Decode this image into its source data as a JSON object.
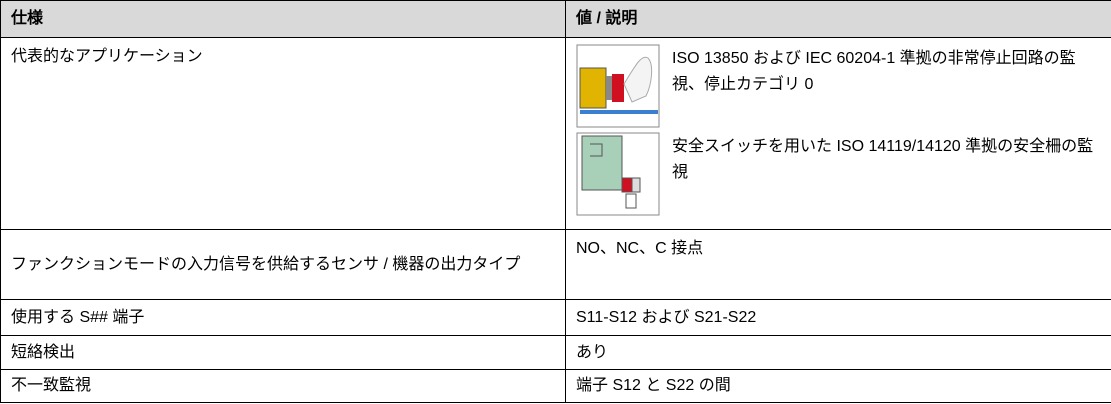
{
  "table": {
    "header": [
      "仕様",
      "値 / 説明"
    ],
    "rows": [
      {
        "spec": "代表的なアプリケーション",
        "applications": [
          "ISO 13850 および IEC 60204-1 準拠の非常停止回路の監視、停止カテゴリ 0",
          "安全スイッチを用いた ISO 14119/14120 準拠の安全柵の監視"
        ]
      },
      {
        "spec": "ファンクションモードの入力信号を供給するセンサ / 機器の出力タイプ",
        "value": "NO、NC、C 接点"
      },
      {
        "spec": "使用する S## 端子",
        "value": "S11-S12 および S21-S22"
      },
      {
        "spec": "短絡検出",
        "value": "あり"
      },
      {
        "spec": "不一致監視",
        "value": "端子 S12 と S22 の間"
      }
    ]
  }
}
